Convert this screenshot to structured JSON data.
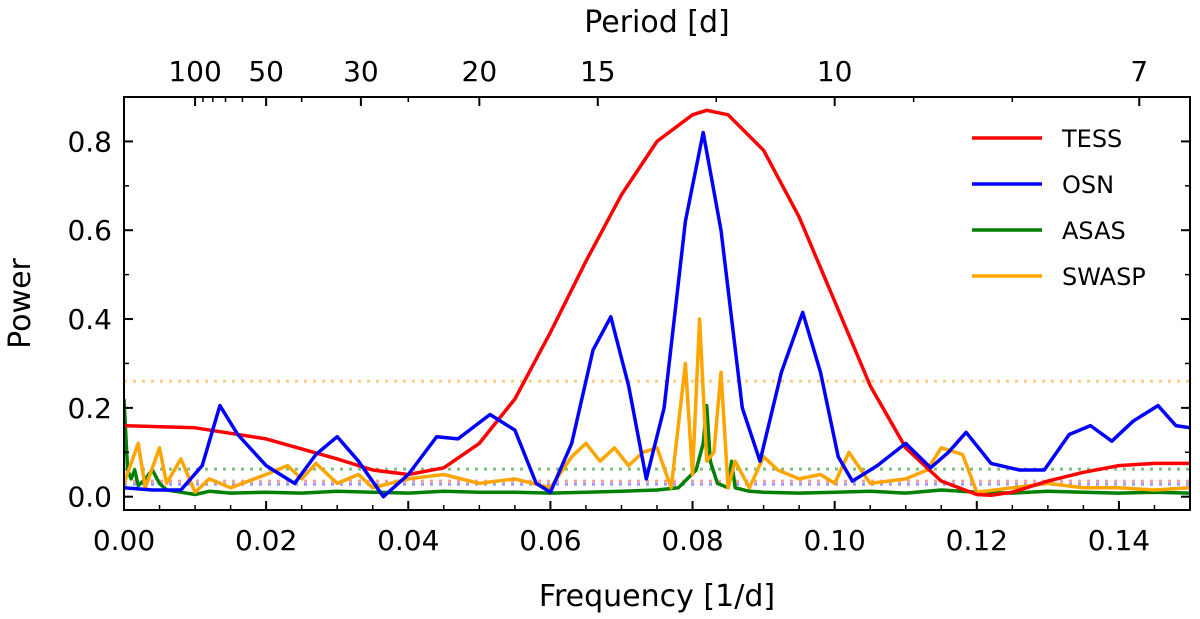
{
  "chart_data": {
    "type": "line",
    "title": "",
    "xlabel": "Frequency [1/d]",
    "ylabel": "Power",
    "top_axis_label": "Period [d]",
    "xlim": [
      0.0,
      0.15
    ],
    "ylim": [
      -0.03,
      0.9
    ],
    "x_ticks": [
      0.0,
      0.02,
      0.04,
      0.06,
      0.08,
      0.1,
      0.12,
      0.14
    ],
    "x_tick_labels": [
      "0.00",
      "0.02",
      "0.04",
      "0.06",
      "0.08",
      "0.10",
      "0.12",
      "0.14"
    ],
    "y_ticks": [
      0.0,
      0.2,
      0.4,
      0.6,
      0.8
    ],
    "y_tick_labels": [
      "0.0",
      "0.2",
      "0.4",
      "0.6",
      "0.8"
    ],
    "top_ticks_period": [
      100,
      50,
      30,
      20,
      15,
      10,
      7
    ],
    "top_tick_labels": [
      "100",
      "50",
      "30",
      "20",
      "15",
      "10",
      "7"
    ],
    "top_minor_ticks_period": [
      90,
      80,
      70,
      60,
      40,
      25,
      12,
      9,
      8
    ],
    "legend_position": "top-right",
    "series": [
      {
        "name": "TESS",
        "color": "#ff0000",
        "x": [
          0.0,
          0.01,
          0.02,
          0.03,
          0.035,
          0.04,
          0.045,
          0.05,
          0.055,
          0.06,
          0.065,
          0.07,
          0.075,
          0.08,
          0.082,
          0.085,
          0.09,
          0.095,
          0.1,
          0.105,
          0.11,
          0.115,
          0.12,
          0.122,
          0.125,
          0.13,
          0.135,
          0.14,
          0.145,
          0.15
        ],
        "y": [
          0.16,
          0.155,
          0.13,
          0.085,
          0.06,
          0.05,
          0.065,
          0.12,
          0.22,
          0.37,
          0.53,
          0.68,
          0.8,
          0.86,
          0.87,
          0.86,
          0.78,
          0.63,
          0.44,
          0.25,
          0.11,
          0.035,
          0.005,
          0.003,
          0.01,
          0.035,
          0.055,
          0.07,
          0.075,
          0.075
        ]
      },
      {
        "name": "OSN",
        "color": "#0000ff",
        "x": [
          0.0,
          0.004,
          0.008,
          0.011,
          0.0135,
          0.016,
          0.02,
          0.024,
          0.027,
          0.03,
          0.033,
          0.0365,
          0.04,
          0.044,
          0.047,
          0.0515,
          0.055,
          0.058,
          0.06,
          0.063,
          0.066,
          0.0685,
          0.071,
          0.0735,
          0.076,
          0.079,
          0.0815,
          0.084,
          0.087,
          0.0895,
          0.0925,
          0.0955,
          0.098,
          0.1005,
          0.1025,
          0.106,
          0.11,
          0.1135,
          0.116,
          0.1185,
          0.122,
          0.126,
          0.1295,
          0.133,
          0.136,
          0.139,
          0.142,
          0.1455,
          0.148,
          0.15
        ],
        "y": [
          0.02,
          0.015,
          0.015,
          0.07,
          0.205,
          0.14,
          0.07,
          0.03,
          0.095,
          0.135,
          0.08,
          0.0,
          0.05,
          0.135,
          0.13,
          0.185,
          0.15,
          0.03,
          0.01,
          0.12,
          0.33,
          0.405,
          0.25,
          0.04,
          0.2,
          0.62,
          0.82,
          0.6,
          0.2,
          0.08,
          0.28,
          0.415,
          0.28,
          0.09,
          0.035,
          0.07,
          0.12,
          0.065,
          0.1,
          0.145,
          0.075,
          0.06,
          0.06,
          0.14,
          0.16,
          0.125,
          0.17,
          0.205,
          0.16,
          0.155
        ]
      },
      {
        "name": "ASAS",
        "color": "#008000",
        "x": [
          0.0,
          0.0005,
          0.001,
          0.0015,
          0.002,
          0.003,
          0.004,
          0.005,
          0.006,
          0.008,
          0.01,
          0.012,
          0.015,
          0.02,
          0.025,
          0.03,
          0.035,
          0.04,
          0.045,
          0.05,
          0.055,
          0.06,
          0.065,
          0.07,
          0.075,
          0.078,
          0.0805,
          0.0815,
          0.082,
          0.0825,
          0.0835,
          0.085,
          0.0855,
          0.086,
          0.088,
          0.09,
          0.095,
          0.1,
          0.105,
          0.11,
          0.115,
          0.12,
          0.125,
          0.13,
          0.135,
          0.14,
          0.145,
          0.15
        ],
        "y": [
          0.22,
          0.06,
          0.04,
          0.06,
          0.025,
          0.04,
          0.06,
          0.03,
          0.015,
          0.01,
          0.005,
          0.012,
          0.008,
          0.01,
          0.008,
          0.012,
          0.01,
          0.008,
          0.012,
          0.01,
          0.01,
          0.008,
          0.01,
          0.012,
          0.015,
          0.02,
          0.06,
          0.12,
          0.205,
          0.08,
          0.03,
          0.02,
          0.08,
          0.02,
          0.012,
          0.01,
          0.008,
          0.01,
          0.012,
          0.008,
          0.015,
          0.01,
          0.008,
          0.012,
          0.01,
          0.008,
          0.01,
          0.008
        ]
      },
      {
        "name": "SWASP",
        "color": "#ffa500",
        "x": [
          0.0,
          0.002,
          0.003,
          0.005,
          0.006,
          0.008,
          0.01,
          0.012,
          0.015,
          0.02,
          0.023,
          0.025,
          0.027,
          0.03,
          0.033,
          0.035,
          0.04,
          0.045,
          0.05,
          0.055,
          0.06,
          0.063,
          0.065,
          0.067,
          0.069,
          0.071,
          0.073,
          0.075,
          0.077,
          0.079,
          0.08,
          0.081,
          0.082,
          0.083,
          0.084,
          0.085,
          0.086,
          0.088,
          0.09,
          0.092,
          0.095,
          0.098,
          0.1,
          0.102,
          0.105,
          0.11,
          0.113,
          0.115,
          0.118,
          0.12,
          0.125,
          0.13,
          0.135,
          0.14,
          0.145,
          0.15
        ],
        "y": [
          0.03,
          0.12,
          0.02,
          0.11,
          0.03,
          0.085,
          0.01,
          0.04,
          0.02,
          0.05,
          0.07,
          0.04,
          0.075,
          0.03,
          0.05,
          0.02,
          0.04,
          0.05,
          0.03,
          0.04,
          0.02,
          0.09,
          0.12,
          0.08,
          0.11,
          0.07,
          0.1,
          0.11,
          0.02,
          0.3,
          0.05,
          0.4,
          0.08,
          0.1,
          0.28,
          0.02,
          0.08,
          0.02,
          0.09,
          0.06,
          0.04,
          0.05,
          0.03,
          0.1,
          0.03,
          0.04,
          0.06,
          0.11,
          0.095,
          0.01,
          0.02,
          0.03,
          0.02,
          0.02,
          0.015,
          0.02
        ]
      }
    ],
    "threshold_lines": [
      {
        "name": "SWASP threshold",
        "color": "#ffd080",
        "y": 0.26
      },
      {
        "name": "ASAS threshold",
        "color": "#7fbf7f",
        "y": 0.062
      },
      {
        "name": "TESS threshold",
        "color": "#ff9b9b",
        "y": 0.035
      },
      {
        "name": "OSN threshold",
        "color": "#9b9bff",
        "y": 0.028
      }
    ]
  }
}
